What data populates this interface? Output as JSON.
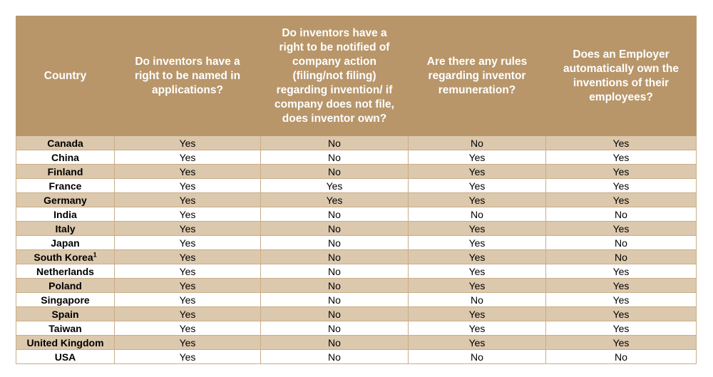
{
  "table": {
    "headers": [
      "Country",
      "Do inventors have a right to be named in applications?",
      "Do inventors have a right to be notified of company action (filing/not filing) regarding invention/ if company does not file, does inventor own?",
      "Are there any rules regarding inventor remuneration?",
      "Does an Employer automatically own the inventions of their employees?"
    ],
    "rows": [
      {
        "country": "Canada",
        "cells": [
          "Yes",
          "No",
          "No",
          "Yes"
        ]
      },
      {
        "country": "China",
        "cells": [
          "Yes",
          "No",
          "Yes",
          "Yes"
        ]
      },
      {
        "country": "Finland",
        "cells": [
          "Yes",
          "No",
          "Yes",
          "Yes"
        ]
      },
      {
        "country": "France",
        "cells": [
          "Yes",
          "Yes",
          "Yes",
          "Yes"
        ]
      },
      {
        "country": "Germany",
        "cells": [
          "Yes",
          "Yes",
          "Yes",
          "Yes"
        ]
      },
      {
        "country": "India",
        "cells": [
          "Yes",
          "No",
          "No",
          "No"
        ]
      },
      {
        "country": "Italy",
        "cells": [
          "Yes",
          "No",
          "Yes",
          "Yes"
        ]
      },
      {
        "country": "Japan",
        "cells": [
          "Yes",
          "No",
          "Yes",
          "No"
        ]
      },
      {
        "country": "South Korea",
        "note": "1",
        "cells": [
          "Yes",
          "No",
          "Yes",
          "No"
        ]
      },
      {
        "country": "Netherlands",
        "cells": [
          "Yes",
          "No",
          "Yes",
          "Yes"
        ]
      },
      {
        "country": "Poland",
        "cells": [
          "Yes",
          "No",
          "Yes",
          "Yes"
        ]
      },
      {
        "country": "Singapore",
        "cells": [
          "Yes",
          "No",
          "No",
          "Yes"
        ]
      },
      {
        "country": "Spain",
        "cells": [
          "Yes",
          "No",
          "Yes",
          "Yes"
        ]
      },
      {
        "country": "Taiwan",
        "cells": [
          "Yes",
          "No",
          "Yes",
          "Yes"
        ]
      },
      {
        "country": "United Kingdom",
        "cells": [
          "Yes",
          "No",
          "Yes",
          "Yes"
        ]
      },
      {
        "country": "USA",
        "cells": [
          "Yes",
          "No",
          "No",
          "No"
        ]
      }
    ]
  }
}
